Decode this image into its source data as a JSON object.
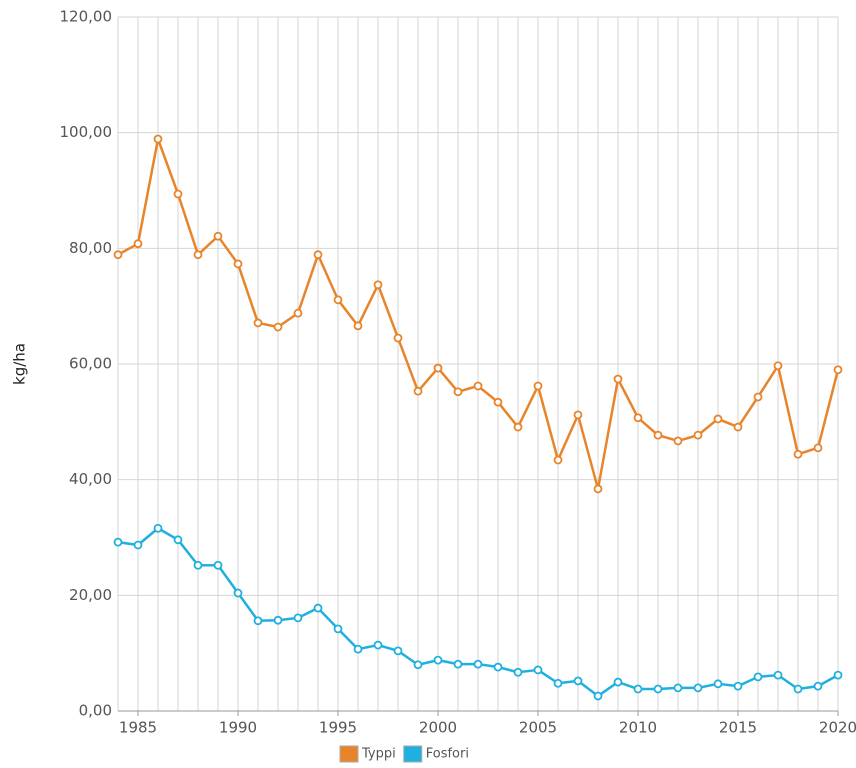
{
  "chart_data": {
    "type": "line",
    "y_label": "kg/ha",
    "x": [
      1984,
      1985,
      1986,
      1987,
      1988,
      1989,
      1990,
      1991,
      1992,
      1993,
      1994,
      1995,
      1996,
      1997,
      1998,
      1999,
      2000,
      2001,
      2002,
      2003,
      2004,
      2005,
      2006,
      2007,
      2008,
      2009,
      2010,
      2011,
      2012,
      2013,
      2014,
      2015,
      2016,
      2017,
      2018,
      2019,
      2020
    ],
    "xlim": [
      1984,
      2020
    ],
    "xticks": [
      1985,
      1990,
      1995,
      2000,
      2005,
      2010,
      2015,
      2020
    ],
    "ylim": [
      0,
      120
    ],
    "yticks": [
      {
        "value": 0,
        "label": "0,00"
      },
      {
        "value": 20,
        "label": "20,00"
      },
      {
        "value": 40,
        "label": "40,00"
      },
      {
        "value": 60,
        "label": "60,00"
      },
      {
        "value": 80,
        "label": "80,00"
      },
      {
        "value": 100,
        "label": "100,00"
      },
      {
        "value": 120,
        "label": "120,00"
      }
    ],
    "grid": true,
    "legend": "bottom",
    "series": [
      {
        "name": "Typpi",
        "color": "#e8842a",
        "values": [
          78.9,
          80.8,
          98.9,
          89.4,
          78.9,
          82.1,
          77.3,
          67.1,
          66.4,
          68.8,
          78.9,
          71.1,
          66.6,
          73.7,
          64.5,
          55.3,
          59.3,
          55.2,
          56.2,
          53.4,
          49.1,
          56.2,
          43.4,
          51.2,
          38.4,
          57.4,
          50.7,
          47.7,
          46.7,
          47.7,
          50.5,
          49.1,
          54.3,
          59.7,
          44.4,
          45.5,
          59.0
        ]
      },
      {
        "name": "Fosfori",
        "color": "#1fb0e0",
        "values": [
          29.2,
          28.7,
          31.6,
          29.6,
          25.2,
          25.2,
          20.4,
          15.6,
          15.7,
          16.1,
          17.8,
          14.2,
          10.7,
          11.4,
          10.4,
          8.0,
          8.8,
          8.1,
          8.1,
          7.6,
          6.7,
          7.1,
          4.8,
          5.2,
          2.6,
          5.0,
          3.8,
          3.8,
          4.0,
          4.0,
          4.7,
          4.3,
          5.9,
          6.2,
          3.8,
          4.3,
          6.2
        ]
      }
    ]
  }
}
